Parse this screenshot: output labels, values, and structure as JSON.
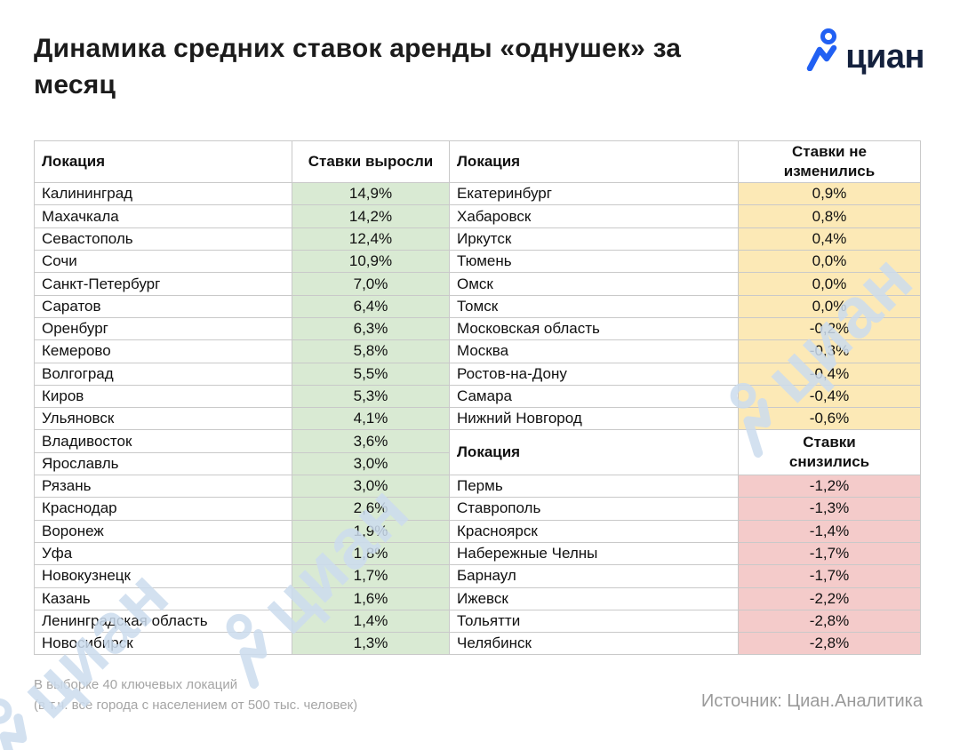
{
  "title": "Динамика средних ставок аренды «однушек» за месяц",
  "logo": {
    "text": "циан",
    "accent_blue": "#2160f3",
    "navy": "#14213d"
  },
  "table": {
    "headers": {
      "location_left": "Локация",
      "rates_up": "Ставки выросли",
      "location_right": "Локация",
      "rates_flat": "Ставки не изменились",
      "location_mid": "Локация",
      "rates_down": "Ставки снизились"
    },
    "colors": {
      "up_bg": "#d9ead3",
      "flat_bg": "#fce9b6",
      "down_bg": "#f4cbca",
      "border": "#c9c9c9"
    },
    "left_rows": [
      {
        "city": "Калининград",
        "value": "14,9%"
      },
      {
        "city": "Махачкала",
        "value": "14,2%"
      },
      {
        "city": "Севастополь",
        "value": "12,4%"
      },
      {
        "city": "Сочи",
        "value": "10,9%"
      },
      {
        "city": "Санкт-Петербург",
        "value": "7,0%"
      },
      {
        "city": "Саратов",
        "value": "6,4%"
      },
      {
        "city": "Оренбург",
        "value": "6,3%"
      },
      {
        "city": "Кемерово",
        "value": "5,8%"
      },
      {
        "city": "Волгоград",
        "value": "5,5%"
      },
      {
        "city": "Киров",
        "value": "5,3%"
      },
      {
        "city": "Ульяновск",
        "value": "4,1%"
      },
      {
        "city": "Владивосток",
        "value": "3,6%"
      },
      {
        "city": "Ярославль",
        "value": "3,0%"
      },
      {
        "city": "Рязань",
        "value": "3,0%"
      },
      {
        "city": "Краснодар",
        "value": "2,6%"
      },
      {
        "city": "Воронеж",
        "value": "1,9%"
      },
      {
        "city": "Уфа",
        "value": "1,8%"
      },
      {
        "city": "Новокузнецк",
        "value": "1,7%"
      },
      {
        "city": "Казань",
        "value": "1,6%"
      },
      {
        "city": "Ленинградская область",
        "value": "1,4%"
      },
      {
        "city": "Новосибирск",
        "value": "1,3%"
      }
    ],
    "right_flat_rows": [
      {
        "city": "Екатеринбург",
        "value": "0,9%"
      },
      {
        "city": "Хабаровск",
        "value": "0,8%"
      },
      {
        "city": "Иркутск",
        "value": "0,4%"
      },
      {
        "city": "Тюмень",
        "value": "0,0%"
      },
      {
        "city": "Омск",
        "value": "0,0%"
      },
      {
        "city": "Томск",
        "value": "0,0%"
      },
      {
        "city": "Московская область",
        "value": "-0,2%"
      },
      {
        "city": "Москва",
        "value": "-0,3%"
      },
      {
        "city": "Ростов-на-Дону",
        "value": "-0,4%"
      },
      {
        "city": "Самара",
        "value": "-0,4%"
      },
      {
        "city": "Нижний Новгород",
        "value": "-0,6%"
      }
    ],
    "right_down_rows": [
      {
        "city": "Пермь",
        "value": "-1,2%"
      },
      {
        "city": "Ставрополь",
        "value": "-1,3%"
      },
      {
        "city": "Красноярск",
        "value": "-1,4%"
      },
      {
        "city": "Набережные Челны",
        "value": "-1,7%"
      },
      {
        "city": "Барнаул",
        "value": "-1,7%"
      },
      {
        "city": "Ижевск",
        "value": "-2,2%"
      },
      {
        "city": "Тольятти",
        "value": "-2,8%"
      },
      {
        "city": "Челябинск",
        "value": "-2,8%"
      }
    ]
  },
  "footer": {
    "note_line1": "В выборке 40 ключевых локаций",
    "note_line2": "(в т.ч. все города с населением от 500 тыс. человек)",
    "source": "Источник: Циан.Аналитика"
  },
  "watermark": {
    "text": "циан"
  }
}
